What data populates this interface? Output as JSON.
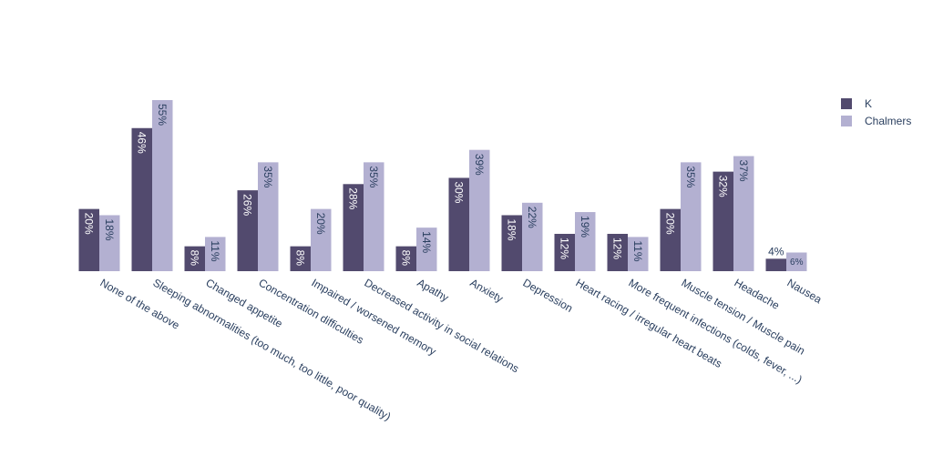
{
  "chart_data": {
    "type": "bar",
    "categories": [
      "None of the above",
      "Sleeping abnormalities (too much, too little, poor quality)",
      "Changed appetite",
      "Concentration difficulties",
      "Impaired / worsened memory",
      "Decreased  activity in social relations",
      "Apathy",
      "Anxiety",
      "Depression",
      "Heart racing / irregular heart beats",
      "More frequent infections (colds, fever, ...)",
      "Muscle tension / Muscle pain",
      "Headache",
      "Nausea"
    ],
    "series": [
      {
        "name": "K",
        "color": "#524a6e",
        "values": [
          20,
          46,
          8,
          26,
          8,
          28,
          8,
          30,
          18,
          12,
          12,
          20,
          32,
          4
        ]
      },
      {
        "name": "Chalmers",
        "color": "#b3b0d1",
        "values": [
          18,
          55,
          11,
          35,
          20,
          35,
          14,
          39,
          22,
          19,
          11,
          35,
          37,
          6
        ]
      }
    ],
    "value_suffix": "%",
    "ylim": [
      0,
      55
    ],
    "legend_position": "top-right",
    "grid": false
  }
}
